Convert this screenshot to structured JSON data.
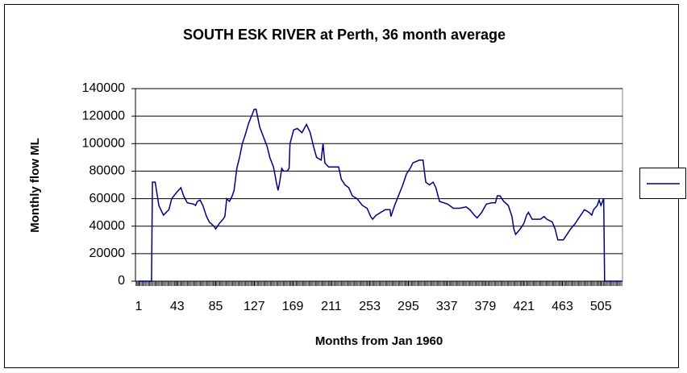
{
  "chart_data": {
    "type": "line",
    "title": "SOUTH ESK RIVER at Perth, 36 month average",
    "x_label": "Months from Jan 1960",
    "y_label": "Monthly flow ML",
    "series": [
      {
        "color": "#000080",
        "x": [
          1,
          15,
          16,
          19,
          23,
          28,
          34,
          37,
          43,
          47,
          50,
          54,
          61,
          63,
          65,
          68,
          71,
          75,
          78,
          83,
          85,
          89,
          93,
          95,
          97,
          100,
          103,
          105,
          108,
          111,
          114,
          117,
          121,
          124,
          127,
          129,
          133,
          137,
          141,
          144,
          148,
          150,
          151,
          153,
          155,
          157,
          159,
          163,
          165,
          166,
          170,
          174,
          179,
          184,
          188,
          192,
          195,
          200,
          202,
          204,
          208,
          219,
          222,
          226,
          230,
          234,
          239,
          245,
          250,
          254,
          256,
          260,
          265,
          270,
          275,
          276,
          280,
          283,
          289,
          293,
          297,
          300,
          307,
          311,
          314,
          318,
          322,
          325,
          329,
          338,
          344,
          351,
          358,
          362,
          367,
          370,
          375,
          380,
          386,
          390,
          392,
          395,
          399,
          404,
          408,
          410,
          412,
          417,
          421,
          424,
          426,
          430,
          439,
          443,
          446,
          452,
          455,
          458,
          464,
          468,
          472,
          477,
          483,
          487,
          492,
          495,
          497,
          501,
          503,
          505,
          508,
          509,
          528
        ],
        "values": [
          0,
          0,
          72000,
          72000,
          55000,
          48000,
          52000,
          60000,
          65000,
          68000,
          62000,
          57000,
          56000,
          55000,
          58000,
          59000,
          55000,
          47000,
          43000,
          40000,
          38000,
          42000,
          45000,
          47000,
          60000,
          58000,
          62000,
          66000,
          82000,
          90000,
          100000,
          106000,
          115000,
          120000,
          125000,
          125000,
          112000,
          105000,
          98000,
          90000,
          83000,
          76000,
          72000,
          66000,
          73000,
          82000,
          80000,
          80000,
          82000,
          100000,
          110000,
          111000,
          108000,
          114000,
          108000,
          97000,
          90000,
          88000,
          100000,
          86000,
          83000,
          83000,
          74000,
          70000,
          68000,
          62000,
          60000,
          55000,
          53000,
          47000,
          45000,
          48000,
          50000,
          52000,
          52000,
          47000,
          55000,
          60000,
          70000,
          78000,
          82000,
          86000,
          88000,
          88000,
          72000,
          70000,
          72000,
          68000,
          58000,
          56000,
          53000,
          53000,
          54000,
          52000,
          48000,
          46000,
          50000,
          56000,
          57000,
          57000,
          62000,
          62000,
          58000,
          55000,
          47000,
          38000,
          34000,
          38000,
          42000,
          48000,
          50000,
          45000,
          45000,
          47000,
          45000,
          43000,
          38000,
          30000,
          30000,
          34000,
          38000,
          42000,
          48000,
          52000,
          50000,
          48000,
          52000,
          55000,
          59000,
          55000,
          60000,
          0,
          0
        ]
      }
    ],
    "xlim": [
      -2.5,
      528.5
    ],
    "xticks": [
      1,
      43,
      85,
      127,
      169,
      211,
      253,
      295,
      337,
      379,
      421,
      463,
      505
    ],
    "ylim": [
      0,
      140000
    ],
    "yticks": [
      0,
      20000,
      40000,
      60000,
      80000,
      100000,
      120000,
      140000
    ],
    "grid": true,
    "legend": "right"
  }
}
